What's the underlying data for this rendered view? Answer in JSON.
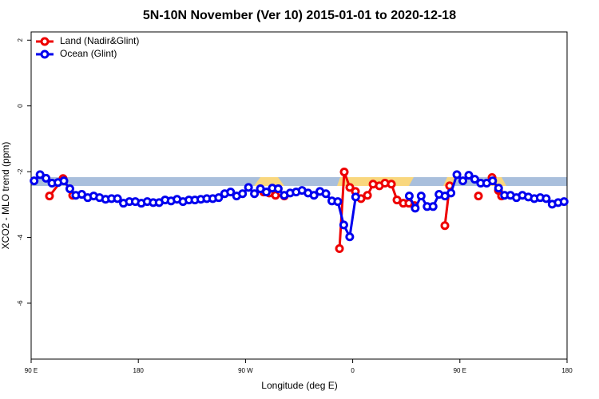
{
  "chart_data": {
    "type": "line",
    "title": "5N-10N November (Ver 10)   2015-01-01 to 2020-12-18",
    "x_label": "Longitude (deg E)",
    "y_label": "XCO2 - MLO trend (ppm)",
    "xlim": [
      90,
      540
    ],
    "ylim": [
      -7.7,
      2.25
    ],
    "xticks": [
      {
        "value": 90,
        "label": "90 E"
      },
      {
        "value": 180,
        "label": "180"
      },
      {
        "value": 270,
        "label": "90 W"
      },
      {
        "value": 360,
        "label": "0"
      },
      {
        "value": 450,
        "label": "90 E"
      },
      {
        "value": 540,
        "label": "180"
      }
    ],
    "yticks": [
      2,
      0,
      -2,
      -4,
      -6
    ],
    "legend": "top-left",
    "series": [
      {
        "name": "Land (Nadir&Glint)",
        "color": "#ee0000",
        "x": [
          105.4,
          116.8,
          124.9,
          null,
          285.2,
          289.9,
          295.2,
          302.6,
          null,
          348.9,
          352.9,
          357.6,
          362.3,
          367.0,
          372.4,
          377.1,
          382.4,
          387.1,
          392.5,
          397.2,
          402.5,
          407.2,
          411.9,
          null,
          437.4,
          441.4,
          null,
          465.6,
          null,
          477.0,
          482.4,
          485.0
        ],
        "values": [
          -2.74,
          -2.21,
          -2.72,
          null,
          -2.62,
          -2.65,
          -2.72,
          -2.74,
          null,
          -4.34,
          -2.01,
          -2.48,
          -2.6,
          -2.82,
          -2.72,
          -2.38,
          -2.43,
          -2.35,
          -2.38,
          -2.86,
          -2.96,
          -2.96,
          -3.03,
          null,
          -3.64,
          -2.43,
          null,
          -2.74,
          null,
          -2.18,
          -2.57,
          -2.74
        ]
      },
      {
        "name": "Ocean (Glint)",
        "color": "#0000ee",
        "x": [
          92.5,
          97.5,
          102.5,
          107.5,
          112.5,
          117.5,
          122.5,
          127.5,
          132.5,
          137.5,
          142.5,
          147.5,
          152.5,
          157.5,
          162.5,
          167.5,
          172.5,
          177.5,
          182.5,
          187.5,
          192.5,
          197.5,
          202.5,
          207.5,
          212.5,
          217.5,
          222.5,
          227.5,
          232.5,
          237.5,
          242.5,
          247.5,
          252.5,
          257.5,
          262.5,
          267.5,
          272.5,
          277.5,
          282.5,
          287.5,
          292.5,
          297.5,
          302.5,
          307.5,
          312.5,
          317.5,
          322.5,
          327.5,
          332.5,
          337.5,
          342.5,
          347.5,
          352.5,
          357.5,
          362.5,
          367.5,
          372.5,
          377.5,
          382.5,
          387.5,
          392.5,
          397.5,
          402.5,
          407.5,
          412.5,
          417.5,
          422.5,
          427.5,
          432.5,
          437.5,
          442.5,
          447.5,
          452.5,
          457.5,
          462.5,
          467.5,
          472.5,
          477.5,
          482.5,
          487.5,
          492.5,
          497.5,
          502.5,
          507.5,
          512.5,
          517.5,
          522.5,
          527.5,
          532.5,
          537.5
        ],
        "values": [
          -2.28,
          -2.09,
          -2.2,
          -2.35,
          -2.33,
          -2.28,
          -2.52,
          -2.72,
          -2.69,
          -2.79,
          -2.74,
          -2.79,
          -2.84,
          -2.82,
          -2.82,
          -2.96,
          -2.91,
          -2.91,
          -2.96,
          -2.91,
          -2.94,
          -2.94,
          -2.86,
          -2.89,
          -2.84,
          -2.91,
          -2.86,
          -2.86,
          -2.84,
          -2.82,
          -2.82,
          -2.79,
          -2.67,
          -2.62,
          -2.74,
          -2.67,
          -2.48,
          -2.67,
          -2.52,
          -2.62,
          -2.5,
          -2.52,
          -2.72,
          -2.65,
          -2.62,
          -2.57,
          -2.65,
          -2.72,
          -2.6,
          -2.67,
          -2.89,
          -2.91,
          -3.62,
          -3.98,
          -2.77,
          null,
          null,
          null,
          null,
          null,
          null,
          null,
          null,
          -2.74,
          -3.11,
          -2.74,
          -3.06,
          -3.06,
          -2.69,
          -2.74,
          -2.65,
          -2.09,
          -2.28,
          -2.11,
          -2.23,
          -2.35,
          -2.35,
          -2.28,
          -2.5,
          -2.72,
          -2.72,
          -2.79,
          -2.72,
          -2.77,
          -2.82,
          -2.79,
          -2.82,
          -2.99,
          -2.94,
          -2.91
        ]
      }
    ]
  }
}
